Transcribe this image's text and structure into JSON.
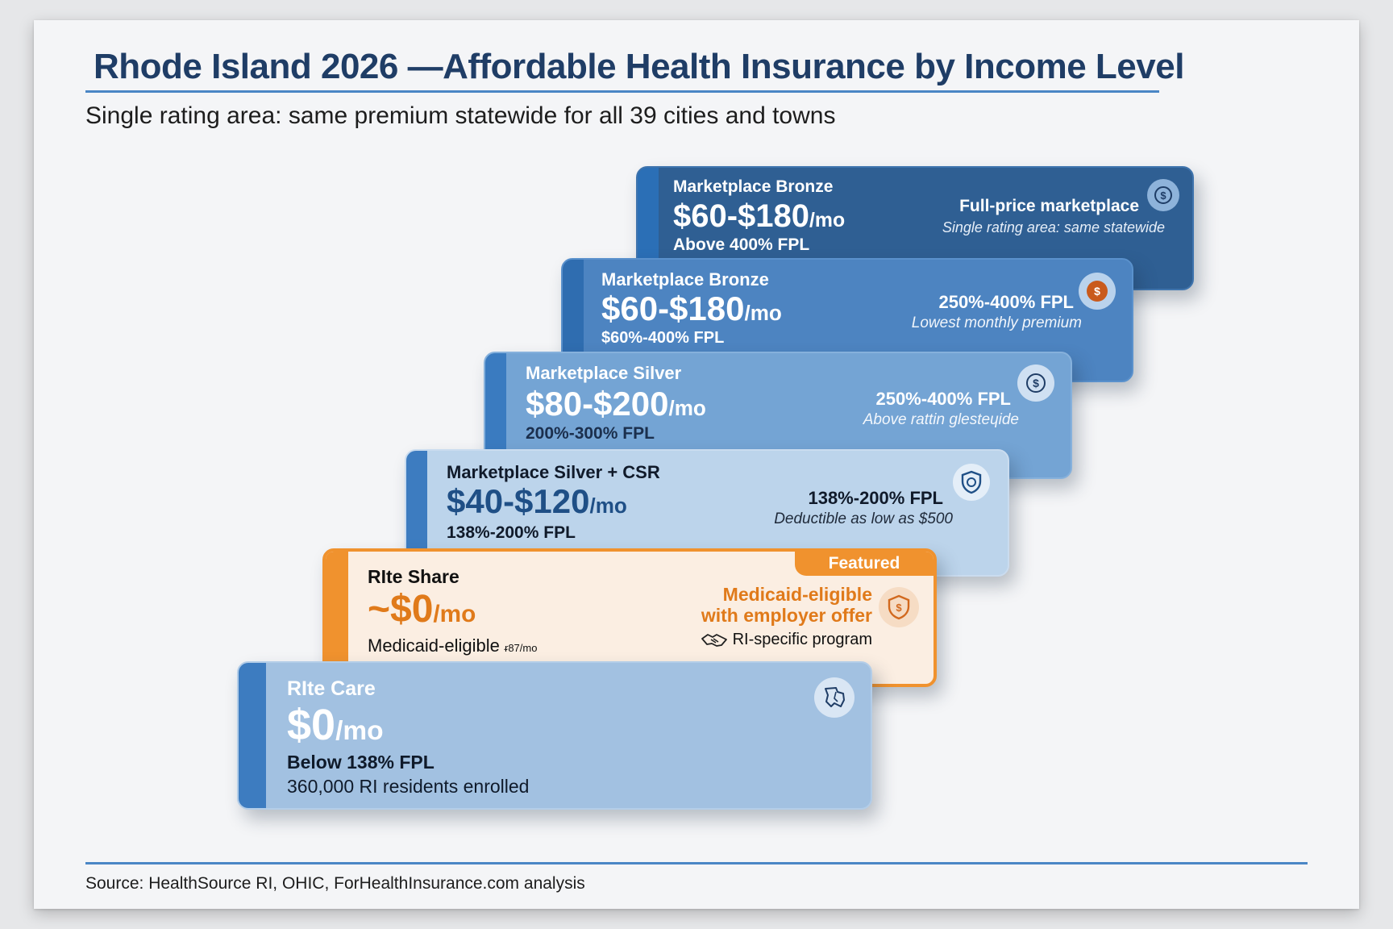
{
  "header": {
    "title": "Rhode Island 2026 —Affordable Health Insurance by Income Level",
    "subtitle": "Single rating area: same premium statewide for all 39 cities and towns"
  },
  "tiers": [
    {
      "name": "Marketplace Bronze",
      "price": "$60-$180",
      "unit": "/mo",
      "fpl": "Above 400% FPL",
      "right_title": "Full-price marketplace",
      "right_sub": "Single rating area: same statewide",
      "icon": "dollar-coin-icon"
    },
    {
      "name": "Marketplace Bronze",
      "price": "$60-$180",
      "unit": "/mo",
      "fpl": "$60%-400% FPL",
      "right_title": "250%-400% FPL",
      "right_sub": "Lowest monthly premium",
      "icon": "dollar-coin-icon"
    },
    {
      "name": "Marketplace Silver",
      "price": "$80-$200",
      "unit": "/mo",
      "fpl": "200%-300% FPL",
      "right_title": "250%-400% FPL",
      "right_sub": "Above rattin glesteɥide",
      "icon": "dollar-coin-icon"
    },
    {
      "name": "Marketplace Silver + CSR",
      "price": "$40-$120",
      "unit": "/mo",
      "fpl": "138%-200% FPL",
      "right_title": "138%-200% FPL",
      "right_sub": "Deductible as low as $500",
      "icon": "shield-icon"
    },
    {
      "name": "RIte Share",
      "price": "~$0",
      "unit": "/mo",
      "fpl": "Medicaid-eligible",
      "fpl_note": "ᵲ87/mo",
      "badge": "Featured",
      "right_title_1": "Medicaid-eligible",
      "right_title_2": "with employer offer",
      "right_sub": "RI-specific program",
      "icon": "shield-dollar-icon",
      "sub_icon": "handshake-icon"
    },
    {
      "name": "RIte Care",
      "price": "$0",
      "unit": "/mo",
      "fpl": "Below 138% FPL",
      "enrolled": "360,000 RI residents enrolled",
      "icon": "rhode-island-map-icon"
    }
  ],
  "colors": {
    "title": "#1f3d66",
    "rule": "#4a86c5",
    "featured_orange": "#f0922e",
    "featured_text": "#e07a1a"
  },
  "footer": {
    "source": "Source: HealthSource RI, OHIC, ForHealthInsurance.com analysis"
  }
}
